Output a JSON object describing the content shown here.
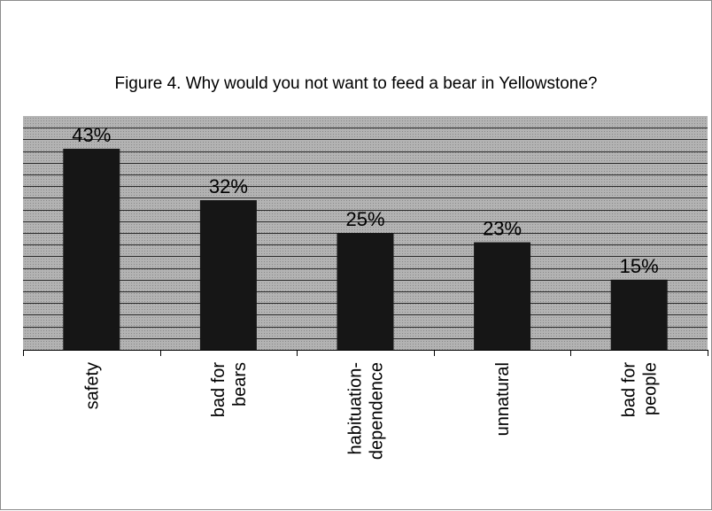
{
  "chart_data": {
    "type": "bar",
    "title": "Figure 4. Why would you not want to feed a bear in Yellowstone?",
    "categories": [
      [
        "safety"
      ],
      [
        "bad for",
        "bears"
      ],
      [
        "habituation-",
        "dependence"
      ],
      [
        "unnatural"
      ],
      [
        "bad for",
        "people"
      ]
    ],
    "values": [
      43,
      32,
      25,
      23,
      15
    ],
    "data_labels": [
      "43%",
      "32%",
      "25%",
      "23%",
      "15%"
    ],
    "ylim": [
      0,
      50
    ],
    "grid": true,
    "legend": "none",
    "colors": {
      "bar": "#161616",
      "plot_area": "#a9a9a9",
      "gridline": "#2b2b2b",
      "text": "#000000"
    }
  }
}
